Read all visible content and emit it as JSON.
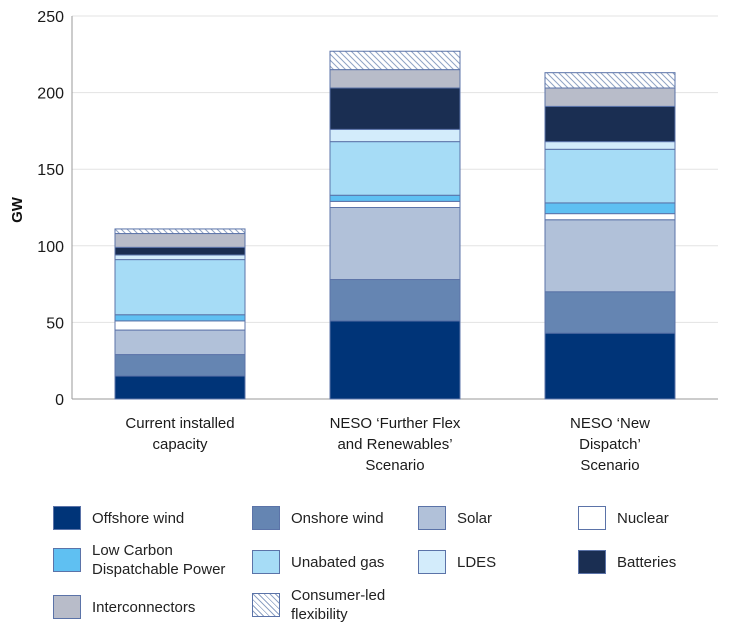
{
  "chart_data": {
    "type": "stacked-bar",
    "ylabel": "GW",
    "ylim": [
      0,
      250
    ],
    "yticks": [
      "0",
      "50",
      "100",
      "150",
      "200",
      "250"
    ],
    "ytick_values": [
      0,
      50,
      100,
      150,
      200,
      250
    ],
    "grid": true,
    "categories": [
      [
        "Current installed",
        "capacity"
      ],
      [
        "NESO ‘Further Flex",
        "and Renewables’",
        "Scenario"
      ],
      [
        "NESO ‘New",
        "Dispatch’",
        "Scenario"
      ]
    ],
    "series": [
      {
        "name": "Offshore wind",
        "color": "#003478",
        "pattern": false,
        "values": [
          15,
          51,
          43
        ]
      },
      {
        "name": "Onshore wind",
        "color": "#6585b2",
        "pattern": false,
        "values": [
          14,
          27,
          27
        ]
      },
      {
        "name": "Solar",
        "color": "#b1c1d9",
        "pattern": false,
        "values": [
          16,
          47,
          47
        ]
      },
      {
        "name": "Nuclear",
        "color": "#ffffff",
        "pattern": false,
        "values": [
          6,
          4,
          4
        ]
      },
      {
        "name": "Low Carbon\nDispatchable Power",
        "color": "#5fc0f2",
        "pattern": false,
        "values": [
          4,
          4,
          7
        ]
      },
      {
        "name": "Unabated gas",
        "color": "#a6dcf6",
        "pattern": false,
        "values": [
          36,
          35,
          35
        ]
      },
      {
        "name": "LDES",
        "color": "#d3ecfb",
        "pattern": false,
        "values": [
          3,
          8,
          5
        ]
      },
      {
        "name": "Batteries",
        "color": "#1a2e52",
        "pattern": false,
        "values": [
          5,
          27,
          23
        ]
      },
      {
        "name": "Interconnectors",
        "color": "#b8bcc9",
        "pattern": false,
        "values": [
          9,
          12,
          12
        ]
      },
      {
        "name": "Consumer-led\nflexibility",
        "color": "#ffffff",
        "pattern": true,
        "values": [
          3,
          12,
          10
        ]
      }
    ]
  }
}
